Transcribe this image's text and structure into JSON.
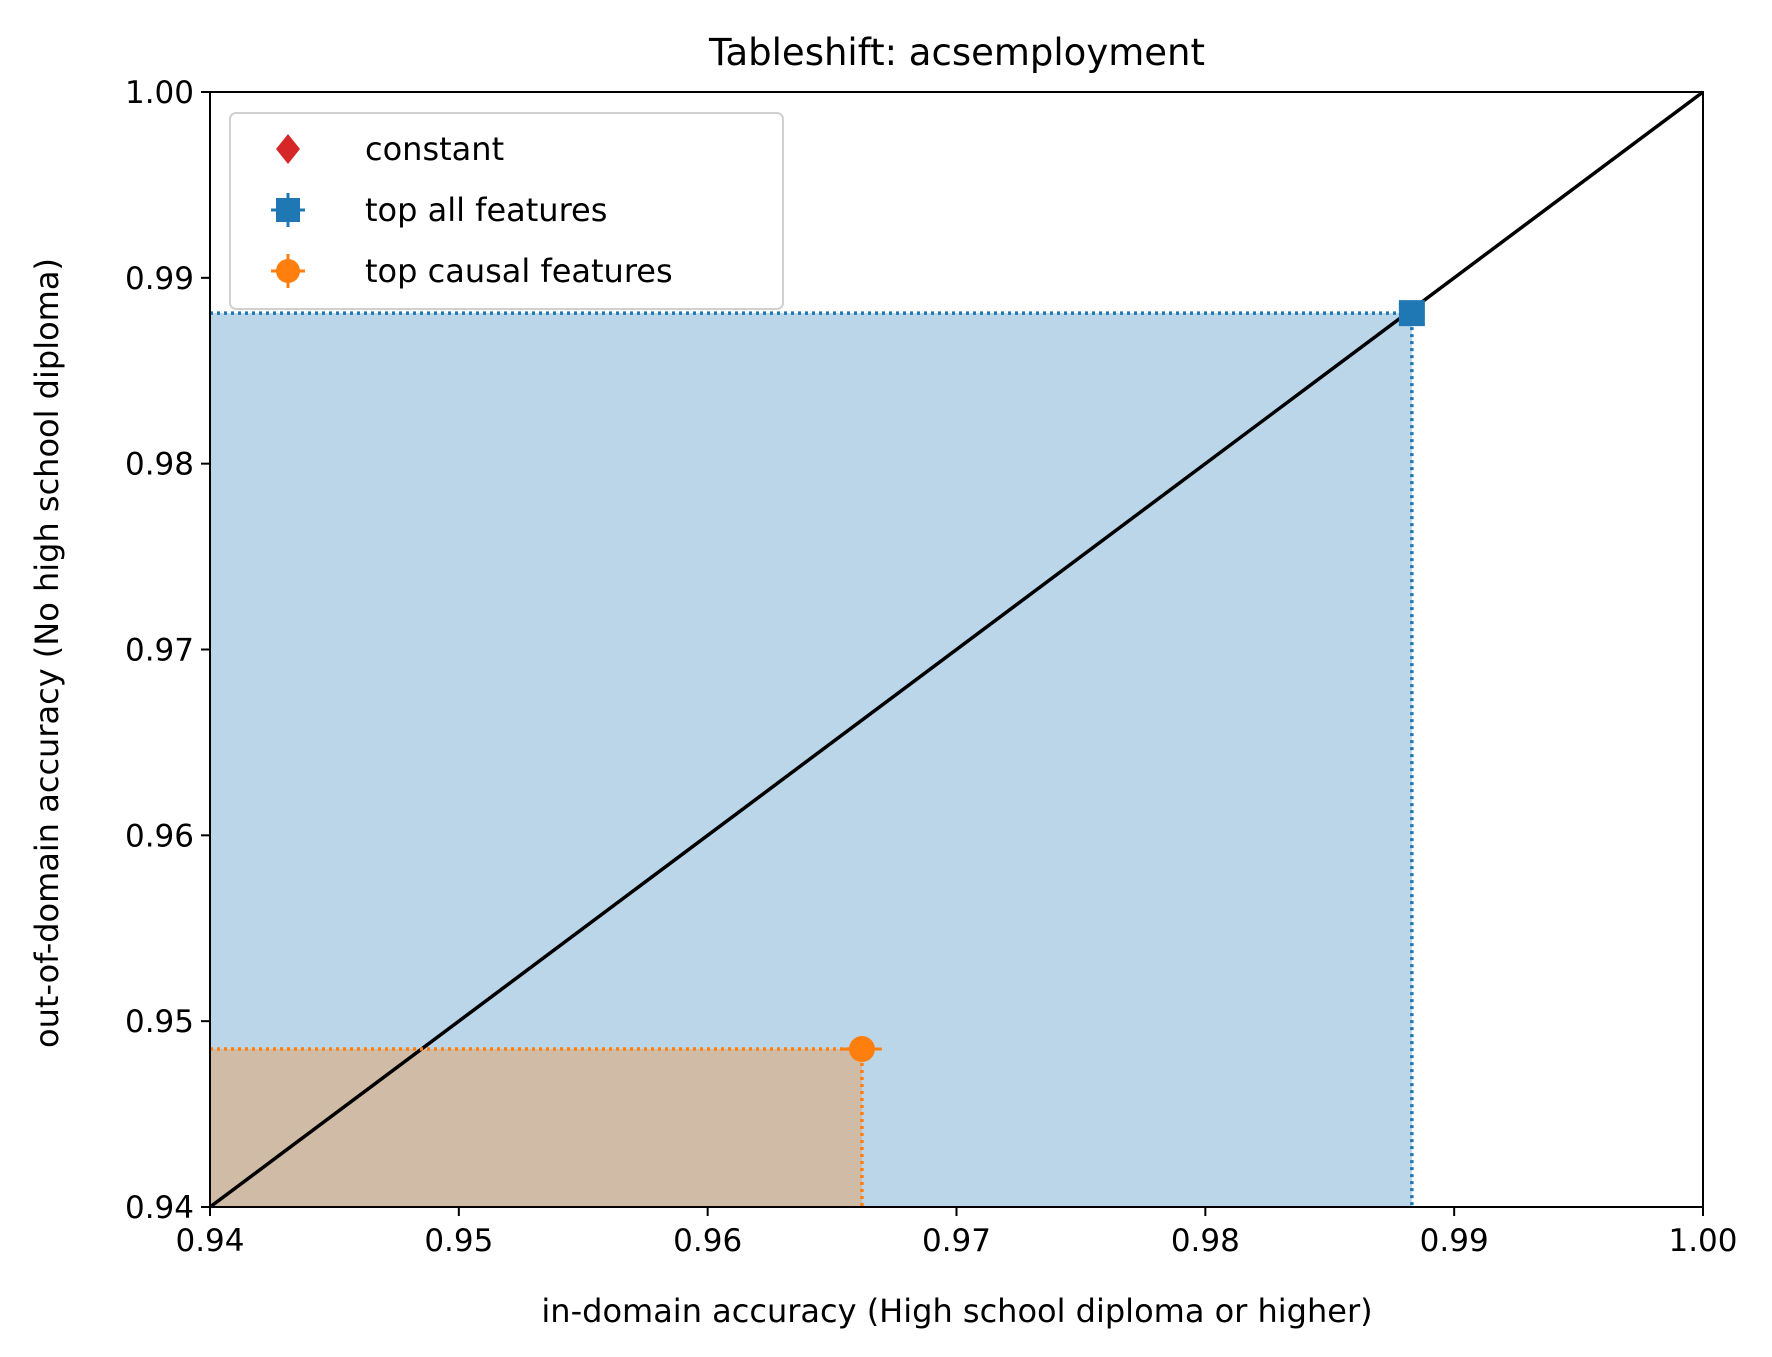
{
  "chart_data": {
    "type": "scatter",
    "title": "Tableshift: acsemployment",
    "xlabel": "in-domain accuracy (High school diploma or higher)",
    "ylabel": "out-of-domain accuracy (No high school diploma)",
    "xlim": [
      0.94,
      1.0
    ],
    "ylim": [
      0.94,
      1.0
    ],
    "xticks": [
      "0.94",
      "0.95",
      "0.96",
      "0.97",
      "0.98",
      "0.99",
      "1.00"
    ],
    "yticks": [
      "0.94",
      "0.95",
      "0.96",
      "0.97",
      "0.98",
      "0.99",
      "1.00"
    ],
    "diagonal": true,
    "legend_position": "top-left",
    "series": [
      {
        "name": "constant",
        "marker": "diamond",
        "color": "#d62728",
        "points": []
      },
      {
        "name": "top all features",
        "marker": "square",
        "color": "#1f77b4",
        "points": [
          {
            "x": 0.9883,
            "y": 0.9881,
            "xerr": 0.0003,
            "yerr": 0.0002
          }
        ]
      },
      {
        "name": "top causal features",
        "marker": "circle",
        "color": "#ff7f0e",
        "points": [
          {
            "x": 0.9662,
            "y": 0.9485,
            "xerr": 0.0008,
            "yerr": 0.0005
          }
        ]
      }
    ]
  }
}
